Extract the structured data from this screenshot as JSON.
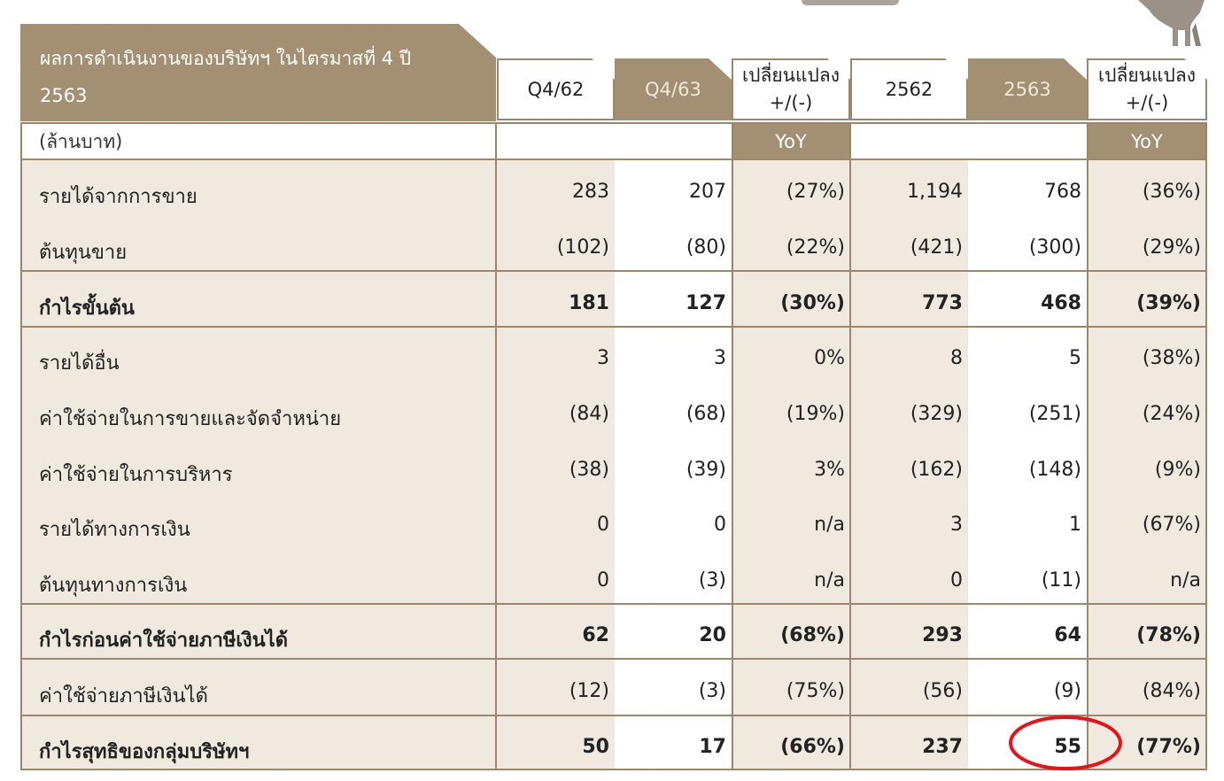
{
  "header": {
    "title": "ผลการดำเนินงานของบริษัทฯ ในไตรมาสที่ 4 ปี 2563",
    "units": "(ล้านบาท)",
    "columns": [
      "Q4/62",
      "Q4/63",
      "เปลี่ยนแปลง\n+/(-)",
      "2562",
      "2563",
      "เปลี่ยนแปลง\n+/(-)"
    ],
    "yoy_label": "YoY"
  },
  "rows": [
    {
      "label": "รายได้จากการขาย",
      "values": [
        "283",
        "207",
        "(27%)",
        "1,194",
        "768",
        "(36%)"
      ],
      "bold": false
    },
    {
      "label": "ต้นทุนขาย",
      "values": [
        "(102)",
        "(80)",
        "(22%)",
        "(421)",
        "(300)",
        "(29%)"
      ],
      "bold": false
    },
    {
      "label": "กำไรขั้นต้น",
      "values": [
        "181",
        "127",
        "(30%)",
        "773",
        "468",
        "(39%)"
      ],
      "bold": true
    },
    {
      "label": "รายได้อื่น",
      "values": [
        "3",
        "3",
        "0%",
        "8",
        "5",
        "(38%)"
      ],
      "bold": false
    },
    {
      "label": "ค่าใช้จ่ายในการขายและจัดจำหน่าย",
      "values": [
        "(84)",
        "(68)",
        "(19%)",
        "(329)",
        "(251)",
        "(24%)"
      ],
      "bold": false
    },
    {
      "label": "ค่าใช้จ่ายในการบริหาร",
      "values": [
        "(38)",
        "(39)",
        "3%",
        "(162)",
        "(148)",
        "(9%)"
      ],
      "bold": false
    },
    {
      "label": "รายได้ทางการเงิน",
      "values": [
        "0",
        "0",
        "n/a",
        "3",
        "1",
        "(67%)"
      ],
      "bold": false
    },
    {
      "label": "ต้นทุนทางการเงิน",
      "values": [
        "0",
        "(3)",
        "n/a",
        "0",
        "(11)",
        "n/a"
      ],
      "bold": false
    },
    {
      "label": "กำไรก่อนค่าใช้จ่ายภาษีเงินได้",
      "values": [
        "62",
        "20",
        "(68%)",
        "293",
        "64",
        "(78%)"
      ],
      "bold": true
    },
    {
      "label": "ค่าใช้จ่ายภาษีเงินได้",
      "values": [
        "(12)",
        "(3)",
        "(75%)",
        "(56)",
        "(9)",
        "(84%)"
      ],
      "bold": false
    },
    {
      "label": "กำไรสุทธิของกลุ่มบริษัทฯ",
      "values": [
        "50",
        "17",
        "(66%)",
        "237",
        "55",
        "(77%)"
      ],
      "bold": true
    }
  ],
  "colors": {
    "header_tan": "#a38f72",
    "body_beige": "#efe9df",
    "border": "#9c876a",
    "highlight": "#e3141b"
  },
  "icons": [
    "logo-icon",
    "highlight-ring"
  ]
}
